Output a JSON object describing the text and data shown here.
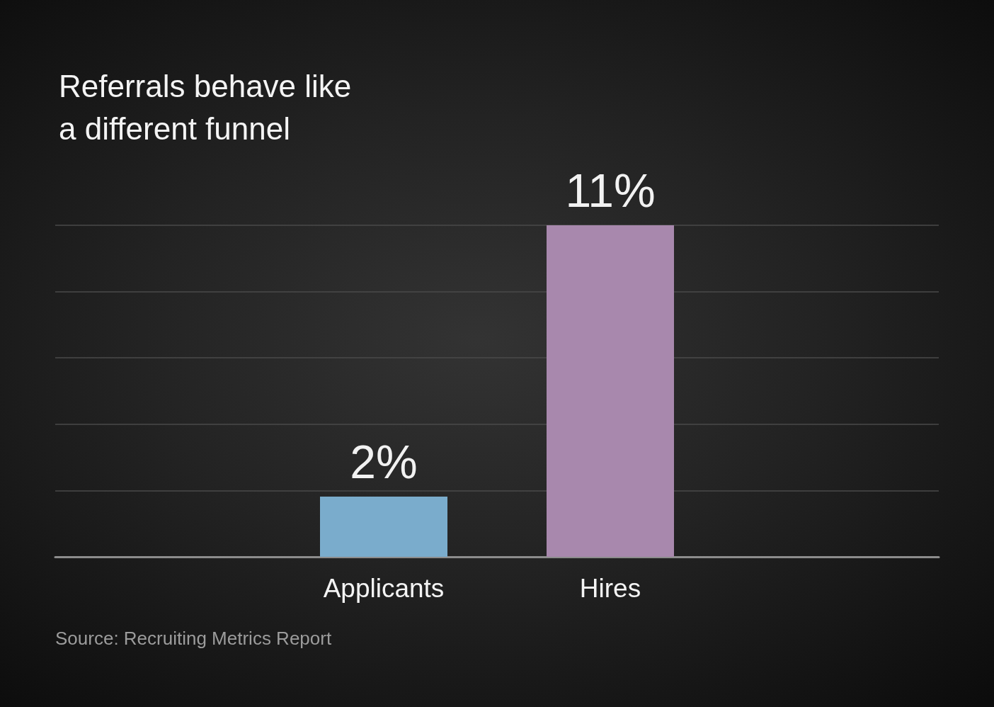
{
  "chart_data": {
    "type": "bar",
    "title": "Referrals behave like a different funnel",
    "categories": [
      "Applicants",
      "Hires"
    ],
    "values": [
      2,
      11
    ],
    "colors": [
      "#7aaccc",
      "#a888ad"
    ],
    "value_labels": [
      "2%",
      "11%"
    ],
    "ylim": [
      0,
      11
    ],
    "yticks": [
      {
        "value": 0,
        "label": null
      },
      {
        "value": 2.2,
        "label": null
      },
      {
        "value": 4.4,
        "label": null
      },
      {
        "value": 6.6,
        "label": null
      },
      {
        "value": 8.8,
        "label": null
      },
      {
        "value": 11,
        "label": null
      }
    ],
    "grid": "y",
    "tick_labels": "x",
    "annotations": [
      "Source: Recruiting Metrics Report"
    ]
  }
}
